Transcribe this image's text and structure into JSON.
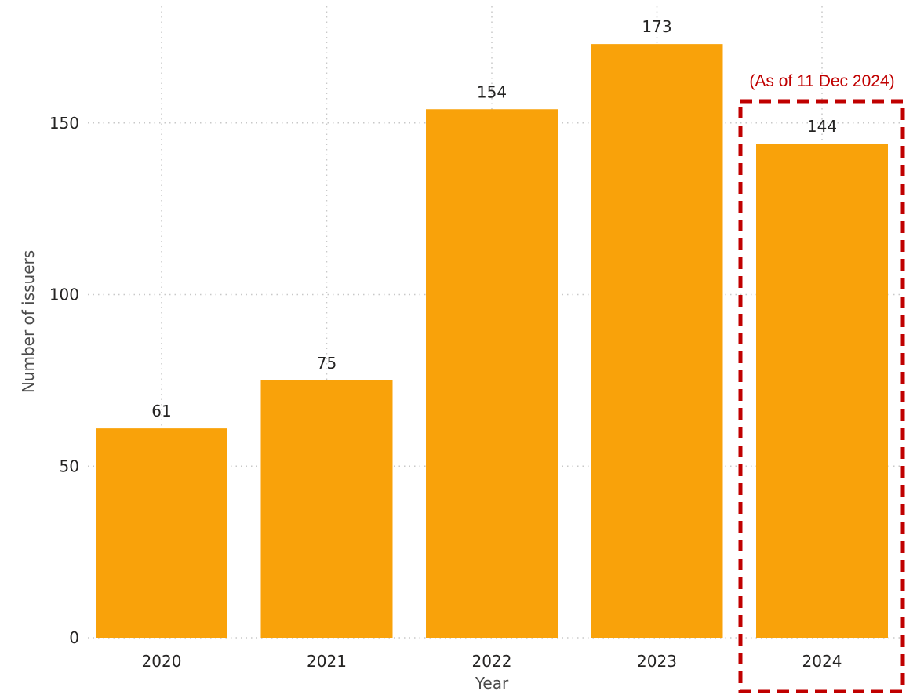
{
  "chart_data": {
    "type": "bar",
    "categories": [
      "2020",
      "2021",
      "2022",
      "2023",
      "2024"
    ],
    "values": [
      61,
      75,
      154,
      173,
      144
    ],
    "data_labels": [
      "61",
      "75",
      "154",
      "173",
      "144"
    ],
    "y_ticks": [
      "0",
      "50",
      "100",
      "150"
    ],
    "y_tick_values": [
      0,
      50,
      100,
      150
    ],
    "xlabel": "Year",
    "ylabel": "Number of issuers",
    "ylim": [
      0,
      185
    ],
    "grid": "horizontal dotted",
    "annotation": {
      "text": "(As of 11 Dec 2024)",
      "category": "2024",
      "style": "dashed box"
    }
  },
  "colors": {
    "bar": "#F9A20A",
    "gridline": "#c8c8c8",
    "annotation": "#C00000",
    "text": "#252423"
  }
}
